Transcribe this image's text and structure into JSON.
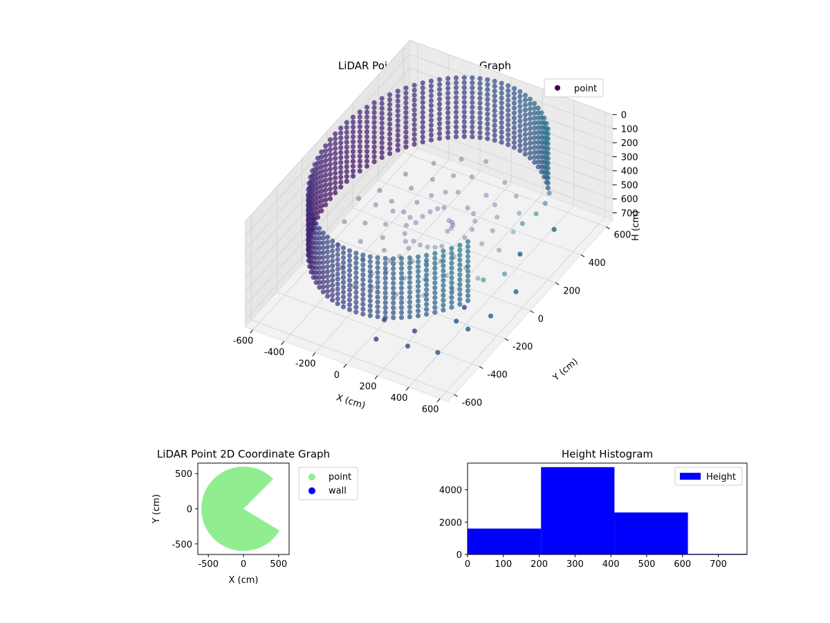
{
  "chart_data": [
    {
      "type": "scatter3d",
      "title": "LiDAR Point 3D Coordinate Graph",
      "xlabel": "X (cm)",
      "ylabel": "Y (cm)",
      "zlabel": "H (cm)",
      "xlim": [
        -650,
        650
      ],
      "ylim": [
        -650,
        650
      ],
      "zlim": [
        0,
        750
      ],
      "z_inverted": true,
      "xticks": [
        -600,
        -400,
        -200,
        0,
        200,
        400,
        600
      ],
      "yticks": [
        -600,
        -400,
        -200,
        0,
        200,
        400,
        600
      ],
      "zticks": [
        0,
        100,
        200,
        300,
        400,
        500,
        600,
        700
      ],
      "legend": {
        "entries": [
          "point"
        ],
        "placement": "upper-right"
      },
      "series": [
        {
          "name": "point",
          "colormap": "viridis",
          "wall_radius": 600,
          "wall_height_range": [
            0,
            420
          ],
          "wall_missing_angle_deg": [
            -30,
            45
          ],
          "floor_points": [
            {
              "x": 150,
              "y": -600,
              "h": 560
            },
            {
              "x": 320,
              "y": -560,
              "h": 580
            },
            {
              "x": 480,
              "y": -520,
              "h": 600
            },
            {
              "x": 560,
              "y": -380,
              "h": 540
            },
            {
              "x": 600,
              "y": -250,
              "h": 560
            },
            {
              "x": 640,
              "y": -100,
              "h": 520
            },
            {
              "x": 420,
              "y": -300,
              "h": 620
            },
            {
              "x": 250,
              "y": -420,
              "h": 640
            },
            {
              "x": 80,
              "y": -450,
              "h": 600
            },
            {
              "x": 350,
              "y": -150,
              "h": 700
            },
            {
              "x": 520,
              "y": 80,
              "h": 480
            },
            {
              "x": 600,
              "y": 250,
              "h": 440
            }
          ]
        }
      ]
    },
    {
      "type": "scatter",
      "title": "LiDAR Point 2D Coordinate Graph",
      "xlabel": "X (cm)",
      "ylabel": "Y (cm)",
      "xlim": [
        -650,
        650
      ],
      "ylim": [
        -650,
        650
      ],
      "xticks": [
        -500,
        0,
        500
      ],
      "yticks": [
        -500,
        0,
        500
      ],
      "legend": {
        "entries": [
          "point",
          "wall"
        ],
        "placement": "outside-right"
      },
      "series": [
        {
          "name": "point",
          "color": "#90ee90",
          "shape": "disc-with-wedge-gap",
          "radius": 600,
          "gap_angle_deg": [
            -30,
            45
          ]
        },
        {
          "name": "wall",
          "color": "#0000ff",
          "points": []
        }
      ]
    },
    {
      "type": "bar",
      "title": "Height Histogram",
      "xlabel": "",
      "ylabel": "",
      "xlim": [
        0,
        780
      ],
      "ylim": [
        0,
        5650
      ],
      "xticks": [
        0,
        100,
        200,
        300,
        400,
        500,
        600,
        700
      ],
      "yticks": [
        0,
        2000,
        4000
      ],
      "legend": {
        "entries": [
          "Height"
        ],
        "placement": "upper-right"
      },
      "bins": [
        [
          0,
          205
        ],
        [
          205,
          410
        ],
        [
          410,
          615
        ],
        [
          615,
          780
        ]
      ],
      "series": [
        {
          "name": "Height",
          "color": "#0000ff",
          "values": [
            1600,
            5400,
            2600,
            40
          ]
        }
      ]
    }
  ]
}
